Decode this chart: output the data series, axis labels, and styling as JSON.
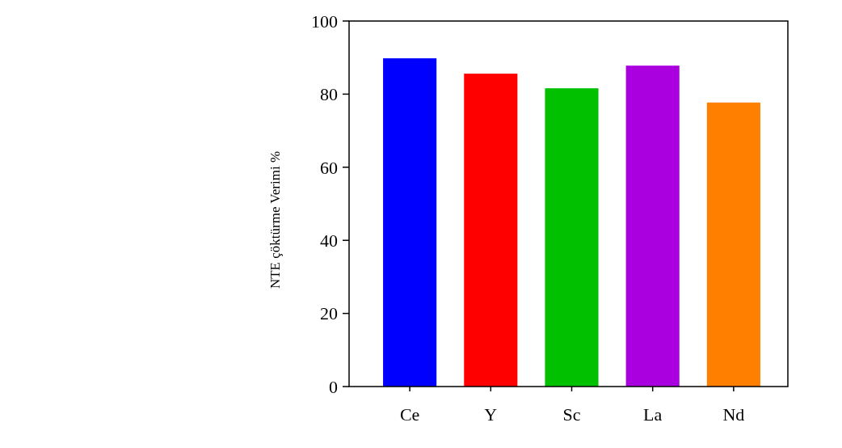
{
  "chart_data": {
    "type": "bar",
    "ylabel": "NTE çöktürme Verimi %",
    "categories": [
      "Ce",
      "Y",
      "Sc",
      "La",
      "Nd"
    ],
    "values": [
      89.8,
      85.6,
      81.6,
      87.8,
      77.7
    ],
    "colors": [
      "#0000ff",
      "#ff0000",
      "#00c000",
      "#aa00e0",
      "#ff8000"
    ],
    "ylim": [
      0,
      100
    ],
    "yticks": [
      0,
      20,
      40,
      60,
      80,
      100
    ],
    "grid": false
  }
}
